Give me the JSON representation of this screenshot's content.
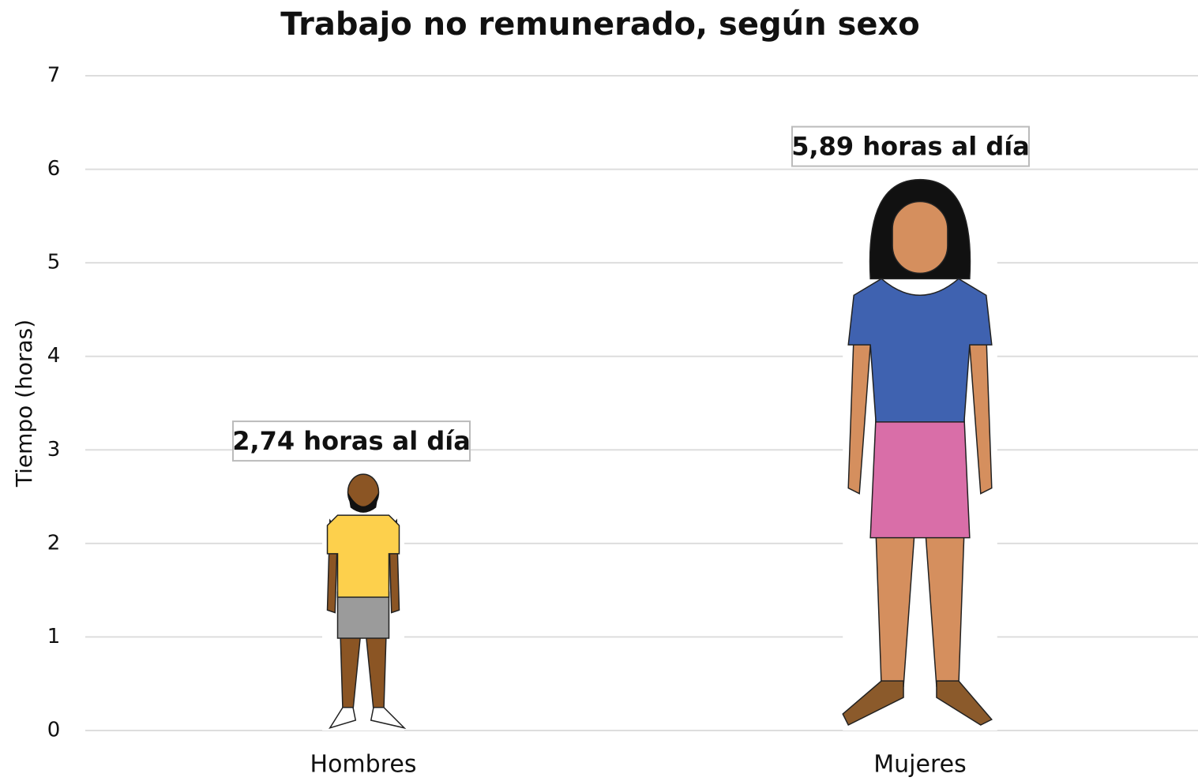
{
  "chart_data": {
    "type": "pictograph",
    "title": "Trabajo no remunerado, según sexo",
    "ylabel": "Tiempo (horas)",
    "categories": [
      "Hombres",
      "Mujeres"
    ],
    "values": [
      2.74,
      5.89
    ],
    "value_labels": [
      "2,74 horas al día",
      "5,89 horas al día"
    ],
    "ylim": [
      0,
      7
    ],
    "yticks": [
      0,
      1,
      2,
      3,
      4,
      5,
      6,
      7
    ],
    "grid": true
  }
}
